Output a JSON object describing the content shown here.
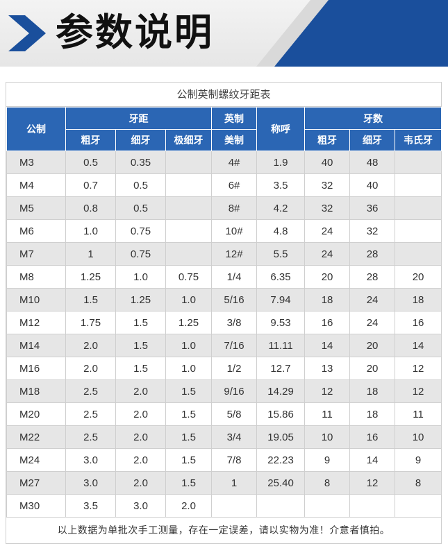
{
  "header": {
    "title": "参数说明",
    "accent_color": "#1a4f9c"
  },
  "table": {
    "caption": "公制英制螺纹牙距表",
    "headers": {
      "metric": "公制",
      "pitch": "牙距",
      "pitch_coarse": "粗牙",
      "pitch_fine": "细牙",
      "pitch_extra_fine": "极细牙",
      "imperial_top": "英制",
      "imperial_bottom": "美制",
      "nominal": "称呼",
      "tpi": "牙数",
      "tpi_coarse": "粗牙",
      "tpi_fine": "细牙",
      "tpi_whitworth": "韦氏牙"
    },
    "rows": [
      [
        "M3",
        "0.5",
        "0.35",
        "",
        "4#",
        "1.9",
        "40",
        "48",
        ""
      ],
      [
        "M4",
        "0.7",
        "0.5",
        "",
        "6#",
        "3.5",
        "32",
        "40",
        ""
      ],
      [
        "M5",
        "0.8",
        "0.5",
        "",
        "8#",
        "4.2",
        "32",
        "36",
        ""
      ],
      [
        "M6",
        "1.0",
        "0.75",
        "",
        "10#",
        "4.8",
        "24",
        "32",
        ""
      ],
      [
        "M7",
        "1",
        "0.75",
        "",
        "12#",
        "5.5",
        "24",
        "28",
        ""
      ],
      [
        "M8",
        "1.25",
        "1.0",
        "0.75",
        "1/4",
        "6.35",
        "20",
        "28",
        "20"
      ],
      [
        "M10",
        "1.5",
        "1.25",
        "1.0",
        "5/16",
        "7.94",
        "18",
        "24",
        "18"
      ],
      [
        "M12",
        "1.75",
        "1.5",
        "1.25",
        "3/8",
        "9.53",
        "16",
        "24",
        "16"
      ],
      [
        "M14",
        "2.0",
        "1.5",
        "1.0",
        "7/16",
        "11.11",
        "14",
        "20",
        "14"
      ],
      [
        "M16",
        "2.0",
        "1.5",
        "1.0",
        "1/2",
        "12.7",
        "13",
        "20",
        "12"
      ],
      [
        "M18",
        "2.5",
        "2.0",
        "1.5",
        "9/16",
        "14.29",
        "12",
        "18",
        "12"
      ],
      [
        "M20",
        "2.5",
        "2.0",
        "1.5",
        "5/8",
        "15.86",
        "11",
        "18",
        "11"
      ],
      [
        "M22",
        "2.5",
        "2.0",
        "1.5",
        "3/4",
        "19.05",
        "10",
        "16",
        "10"
      ],
      [
        "M24",
        "3.0",
        "2.0",
        "1.5",
        "7/8",
        "22.23",
        "9",
        "14",
        "9"
      ],
      [
        "M27",
        "3.0",
        "2.0",
        "1.5",
        "1",
        "25.40",
        "8",
        "12",
        "8"
      ],
      [
        "M30",
        "3.5",
        "3.0",
        "2.0",
        "",
        "",
        "",
        "",
        ""
      ]
    ],
    "footnote": "以上数据为单批次手工测量，存在一定误差，请以实物为准！介意者慎拍。"
  }
}
